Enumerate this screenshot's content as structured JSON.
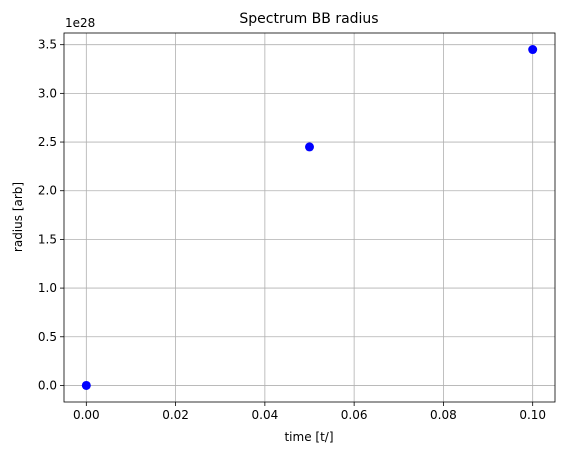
{
  "chart_data": {
    "type": "scatter",
    "title": "Spectrum BB radius",
    "xlabel": "time [t/]",
    "ylabel": "radius [arb]",
    "y_offset_label": "1e28",
    "y_scale_multiplier": 1e+28,
    "xlim": [
      -0.005,
      0.105
    ],
    "ylim": [
      -0.17,
      3.62
    ],
    "x_ticks": [
      0.0,
      0.02,
      0.04,
      0.06,
      0.08,
      0.1
    ],
    "x_tick_labels": [
      "0.00",
      "0.02",
      "0.04",
      "0.06",
      "0.08",
      "0.10"
    ],
    "y_ticks": [
      0.0,
      0.5,
      1.0,
      1.5,
      2.0,
      2.5,
      3.0,
      3.5
    ],
    "y_tick_labels": [
      "0.0",
      "0.5",
      "1.0",
      "1.5",
      "2.0",
      "2.5",
      "3.0",
      "3.5"
    ],
    "grid": true,
    "series": [
      {
        "color": "#0000ff",
        "marker": "circle",
        "points": [
          {
            "x": 0.0,
            "y": 0.0
          },
          {
            "x": 0.05,
            "y": 2.45
          },
          {
            "x": 0.1,
            "y": 3.45
          }
        ]
      }
    ]
  }
}
